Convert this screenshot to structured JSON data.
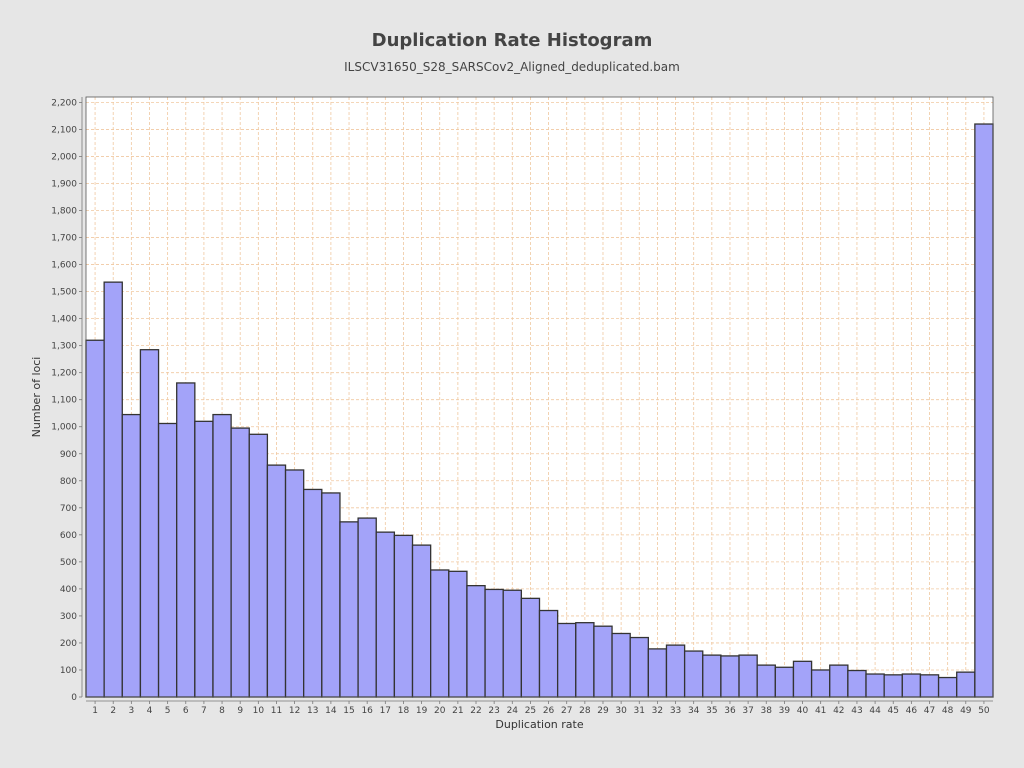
{
  "chart_data": {
    "type": "bar",
    "title": "Duplication Rate Histogram",
    "subtitle": "ILSCV31650_S28_SARSCov2_Aligned_deduplicated.bam",
    "xlabel": "Duplication rate",
    "ylabel": "Number of loci",
    "ylim": [
      0,
      2220
    ],
    "yticks": [
      0,
      100,
      200,
      300,
      400,
      500,
      600,
      700,
      800,
      900,
      1000,
      1100,
      1200,
      1300,
      1400,
      1500,
      1600,
      1700,
      1800,
      1900,
      2000,
      2100,
      2200
    ],
    "ytick_labels": [
      "0",
      "100",
      "200",
      "300",
      "400",
      "500",
      "600",
      "700",
      "800",
      "900",
      "1,000",
      "1,100",
      "1,200",
      "1,300",
      "1,400",
      "1,500",
      "1,600",
      "1,700",
      "1,800",
      "1,900",
      "2,000",
      "2,100",
      "2,200"
    ],
    "categories": [
      "1",
      "2",
      "3",
      "4",
      "5",
      "6",
      "7",
      "8",
      "9",
      "10",
      "11",
      "12",
      "13",
      "14",
      "15",
      "16",
      "17",
      "18",
      "19",
      "20",
      "21",
      "22",
      "23",
      "24",
      "25",
      "26",
      "27",
      "28",
      "29",
      "30",
      "31",
      "32",
      "33",
      "34",
      "35",
      "36",
      "37",
      "38",
      "39",
      "40",
      "41",
      "42",
      "43",
      "44",
      "45",
      "46",
      "47",
      "48",
      "49",
      "50"
    ],
    "values": [
      1320,
      1535,
      1045,
      1285,
      1012,
      1162,
      1020,
      1045,
      995,
      972,
      858,
      840,
      768,
      755,
      648,
      662,
      610,
      598,
      562,
      470,
      465,
      412,
      398,
      395,
      365,
      320,
      272,
      275,
      262,
      235,
      220,
      178,
      192,
      170,
      155,
      152,
      155,
      118,
      110,
      132,
      100,
      118,
      98,
      85,
      82,
      85,
      82,
      72,
      92,
      2120
    ],
    "grid": true,
    "legend": "none",
    "colors": {
      "bar_fill": "#a3a3f9",
      "bar_stroke": "#333333",
      "grid": "#f0c8a0",
      "plot_background": "#ffffff",
      "page_background": "#e6e6e6"
    }
  }
}
